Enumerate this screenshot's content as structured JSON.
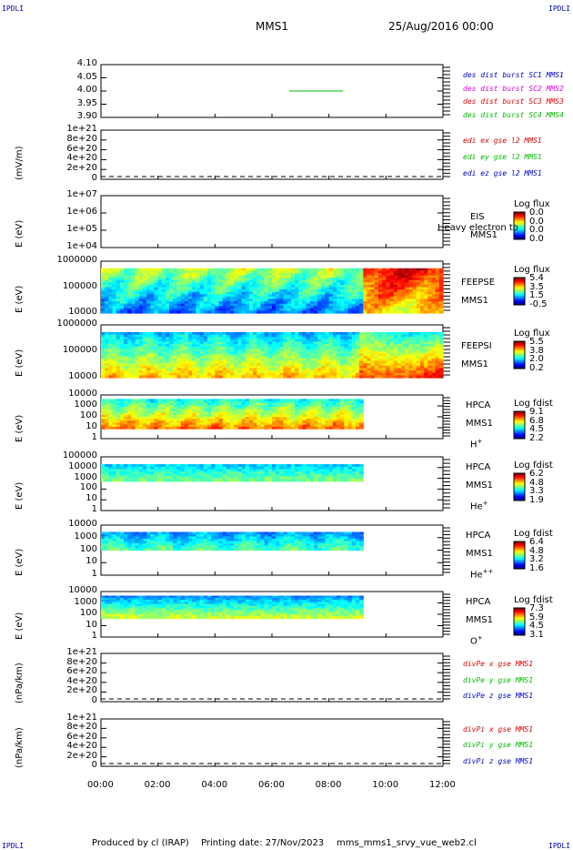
{
  "header": {
    "corner_text": "IPDLI",
    "left_title": "MMS1",
    "right_title": "25/Aug/2016 00:00"
  },
  "footer": {
    "produced": "Produced by cl (IRAP)",
    "printing": "Printing date: 27/Nov/2023",
    "script": "mms_mms1_srvy_vue_web2.cl"
  },
  "colors": {
    "red": "#dd0000",
    "green": "#00bb00",
    "blue": "#0000cc",
    "magenta": "#dd00dd"
  },
  "chart_data": {
    "type": "heatmap",
    "x_ticks": [
      "00:00",
      "02:00",
      "04:00",
      "06:00",
      "08:00",
      "10:00",
      "12:00"
    ],
    "panels": [
      {
        "id": "des",
        "type": "line",
        "y_ticks": [
          "4.10",
          "4.05",
          "4.00",
          "3.95",
          "3.90"
        ],
        "ylim": [
          3.9,
          4.1
        ],
        "legend": [
          {
            "text": "des dist burst SC1 MMS1",
            "color": "#0000cc"
          },
          {
            "text": "des dist burst SC2 MMS2",
            "color": "#dd00dd"
          },
          {
            "text": "des dist burst SC3 MMS3",
            "color": "#dd0000"
          },
          {
            "text": "des dist burst SC4 MMS4",
            "color": "#00bb00"
          }
        ],
        "series": [
          {
            "name": "des dist burst SC4 MMS4",
            "x": [
              6.6,
              8.5
            ],
            "y": [
              4.0,
              4.0
            ]
          }
        ]
      },
      {
        "id": "edi",
        "type": "line",
        "ylabel": "(mV/m)",
        "y_ticks": [
          "1e+21",
          "8e+20",
          "6e+20",
          "4e+20",
          "2e+20",
          "0"
        ],
        "legend": [
          {
            "text": "edi ex gse l2 MMS1",
            "color": "#dd0000"
          },
          {
            "text": "edi ey gse l2 MMS1",
            "color": "#00bb00"
          },
          {
            "text": "edi ez gse l2 MMS1",
            "color": "#0000cc"
          }
        ]
      },
      {
        "id": "eis",
        "type": "heatmap",
        "ylabel": "E (eV)",
        "y_ticks": [
          "1e+07",
          "1e+06",
          "1e+05",
          "1e+04"
        ],
        "instrument": [
          "EIS",
          "MMS1"
        ],
        "overlay": "Heavy electron to",
        "colorbar_title": "Log flux",
        "colorbar_ticks": [
          "0.0",
          "0.0",
          "0.0",
          "0.0"
        ]
      },
      {
        "id": "feepse",
        "type": "heatmap",
        "ylabel": "E (eV)",
        "y_ticks": [
          "1000000",
          "100000",
          "10000"
        ],
        "instrument": [
          "FEEPSE",
          "MMS1"
        ],
        "colorbar_title": "Log flux",
        "colorbar_ticks": [
          "5.4",
          "3.5",
          "1.5",
          "-0.5"
        ]
      },
      {
        "id": "feepsi",
        "type": "heatmap",
        "ylabel": "E (eV)",
        "y_ticks": [
          "1000000",
          "100000",
          "10000"
        ],
        "instrument": [
          "FEEPSI",
          "MMS1"
        ],
        "colorbar_title": "Log flux",
        "colorbar_ticks": [
          "5.5",
          "3.8",
          "2.0",
          "0.2"
        ]
      },
      {
        "id": "hpca_h",
        "type": "heatmap",
        "ylabel": "E (eV)",
        "y_ticks": [
          "10000",
          "1000",
          "100",
          "10",
          "1"
        ],
        "instrument": [
          "HPCA",
          "MMS1"
        ],
        "species": "H",
        "species_charge": "+",
        "colorbar_title": "Log fdist",
        "colorbar_ticks": [
          "9.1",
          "6.8",
          "4.5",
          "2.2"
        ]
      },
      {
        "id": "hpca_he",
        "type": "heatmap",
        "ylabel": "E (eV)",
        "y_ticks": [
          "100000",
          "10000",
          "1000",
          "100",
          "10",
          "1"
        ],
        "instrument": [
          "HPCA",
          "MMS1"
        ],
        "species": "He",
        "species_charge": "+",
        "colorbar_title": "Log fdist",
        "colorbar_ticks": [
          "6.2",
          "4.8",
          "3.3",
          "1.9"
        ]
      },
      {
        "id": "hpca_hepp",
        "type": "heatmap",
        "ylabel": "E (eV)",
        "y_ticks": [
          "10000",
          "1000",
          "100",
          "10",
          "1"
        ],
        "instrument": [
          "HPCA",
          "MMS1"
        ],
        "species": "He",
        "species_charge": "++",
        "colorbar_title": "Log fdist",
        "colorbar_ticks": [
          "6.4",
          "4.8",
          "3.2",
          "1.6"
        ]
      },
      {
        "id": "hpca_o",
        "type": "heatmap",
        "ylabel": "E (eV)",
        "y_ticks": [
          "10000",
          "1000",
          "100",
          "10",
          "1"
        ],
        "instrument": [
          "HPCA",
          "MMS1"
        ],
        "species": "O",
        "species_charge": "+",
        "colorbar_title": "Log fdist",
        "colorbar_ticks": [
          "7.3",
          "5.9",
          "4.5",
          "3.1"
        ]
      },
      {
        "id": "divpe",
        "type": "line",
        "ylabel": "(nPa/km)",
        "y_ticks": [
          "1e+21",
          "8e+20",
          "6e+20",
          "4e+20",
          "2e+20",
          "0"
        ],
        "legend": [
          {
            "text": "divPe x gse MMS1",
            "color": "#dd0000"
          },
          {
            "text": "divPe y gse MMS1",
            "color": "#00bb00"
          },
          {
            "text": "divPe z gse MMS1",
            "color": "#0000cc"
          }
        ]
      },
      {
        "id": "divpi",
        "type": "line",
        "ylabel": "(nPa/km)",
        "y_ticks": [
          "1e+21",
          "8e+20",
          "6e+20",
          "4e+20",
          "2e+20",
          "0"
        ],
        "legend": [
          {
            "text": "divPi x gse MMS1",
            "color": "#dd0000"
          },
          {
            "text": "divPi y gse MMS1",
            "color": "#00bb00"
          },
          {
            "text": "divPi z gse MMS1",
            "color": "#0000cc"
          }
        ]
      }
    ]
  }
}
